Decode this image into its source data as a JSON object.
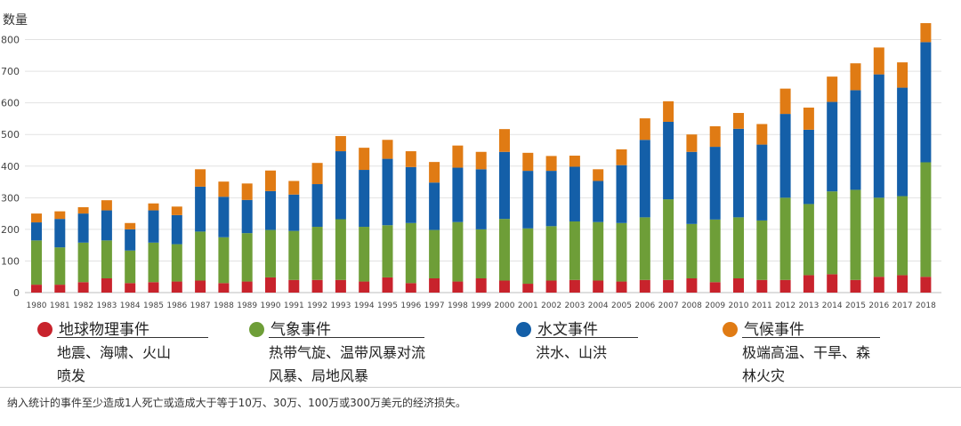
{
  "chart_data": {
    "type": "bar",
    "stacked": true,
    "ylabel": "数量",
    "ylim": [
      0,
      850
    ],
    "yticks": [
      0,
      100,
      200,
      300,
      400,
      500,
      600,
      700,
      800
    ],
    "grid": true,
    "categories": [
      "1980",
      "1981",
      "1982",
      "1983",
      "1984",
      "1985",
      "1986",
      "1987",
      "1988",
      "1989",
      "1990",
      "1991",
      "1992",
      "1993",
      "1994",
      "1995",
      "1996",
      "1997",
      "1998",
      "1999",
      "2000",
      "2001",
      "2002",
      "2003",
      "2004",
      "2005",
      "2006",
      "2007",
      "2008",
      "2009",
      "2010",
      "2011",
      "2012",
      "2013",
      "2014",
      "2015",
      "2016",
      "2017",
      "2018"
    ],
    "series": [
      {
        "name": "地球物理事件",
        "color": "#c8232c",
        "values": [
          25,
          25,
          33,
          45,
          30,
          33,
          35,
          38,
          30,
          35,
          48,
          40,
          40,
          40,
          35,
          48,
          30,
          45,
          35,
          45,
          38,
          28,
          38,
          40,
          38,
          35,
          40,
          40,
          45,
          33,
          45,
          40,
          40,
          55,
          58,
          40,
          50,
          55,
          50
        ]
      },
      {
        "name": "气象事件",
        "color": "#6e9e38",
        "values": [
          140,
          118,
          125,
          120,
          103,
          125,
          118,
          155,
          145,
          153,
          150,
          155,
          168,
          192,
          173,
          165,
          190,
          153,
          188,
          155,
          195,
          175,
          172,
          185,
          185,
          185,
          198,
          255,
          172,
          198,
          193,
          188,
          260,
          225,
          262,
          285,
          250,
          250,
          362
        ]
      },
      {
        "name": "水文事件",
        "color": "#145fa8",
        "values": [
          57,
          90,
          92,
          95,
          67,
          102,
          92,
          142,
          128,
          105,
          123,
          115,
          135,
          215,
          180,
          210,
          177,
          150,
          172,
          190,
          212,
          182,
          175,
          173,
          130,
          183,
          245,
          245,
          228,
          230,
          280,
          240,
          265,
          235,
          283,
          315,
          390,
          343,
          380
        ]
      },
      {
        "name": "气候事件",
        "color": "#e07b14",
        "values": [
          28,
          24,
          20,
          32,
          20,
          22,
          27,
          55,
          48,
          52,
          65,
          43,
          67,
          48,
          70,
          60,
          50,
          65,
          70,
          55,
          72,
          57,
          47,
          35,
          37,
          50,
          68,
          65,
          55,
          65,
          50,
          65,
          80,
          70,
          80,
          85,
          85,
          80,
          60
        ]
      }
    ]
  },
  "legend": [
    {
      "name": "地球物理事件",
      "desc": "地震、海啸、火山喷发",
      "color": "#c8232c"
    },
    {
      "name": "气象事件",
      "desc": "热带气旋、温带风暴对流风暴、局地风暴",
      "color": "#6e9e38"
    },
    {
      "name": "水文事件",
      "desc": "洪水、山洪",
      "color": "#145fa8"
    },
    {
      "name": "气候事件",
      "desc": "极端高温、干旱、森林火灾",
      "color": "#e07b14"
    }
  ],
  "footnote": "纳入统计的事件至少造成1人死亡或造成大于等于10万、30万、100万或300万美元的经济损失。"
}
